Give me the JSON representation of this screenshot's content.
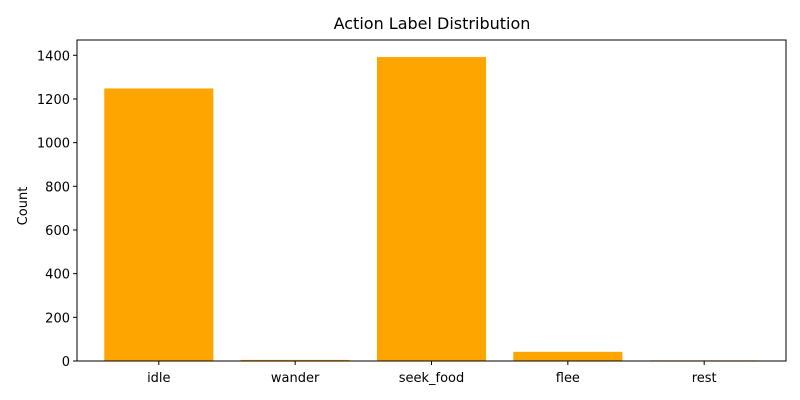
{
  "chart_data": {
    "type": "bar",
    "title": "Action Label Distribution",
    "xlabel": "",
    "ylabel": "Count",
    "categories": [
      "idle",
      "wander",
      "seek_food",
      "flee",
      "rest"
    ],
    "values": [
      1248,
      5,
      1392,
      42,
      3
    ],
    "ylim": [
      0,
      1470
    ],
    "yticks": [
      0,
      200,
      400,
      600,
      800,
      1000,
      1200,
      1400
    ],
    "ytick_labels": [
      "0",
      "200",
      "400",
      "600",
      "800",
      "1000",
      "1200",
      "1400"
    ],
    "bar_color": "#FFA500",
    "grid": false,
    "legend": "none"
  }
}
